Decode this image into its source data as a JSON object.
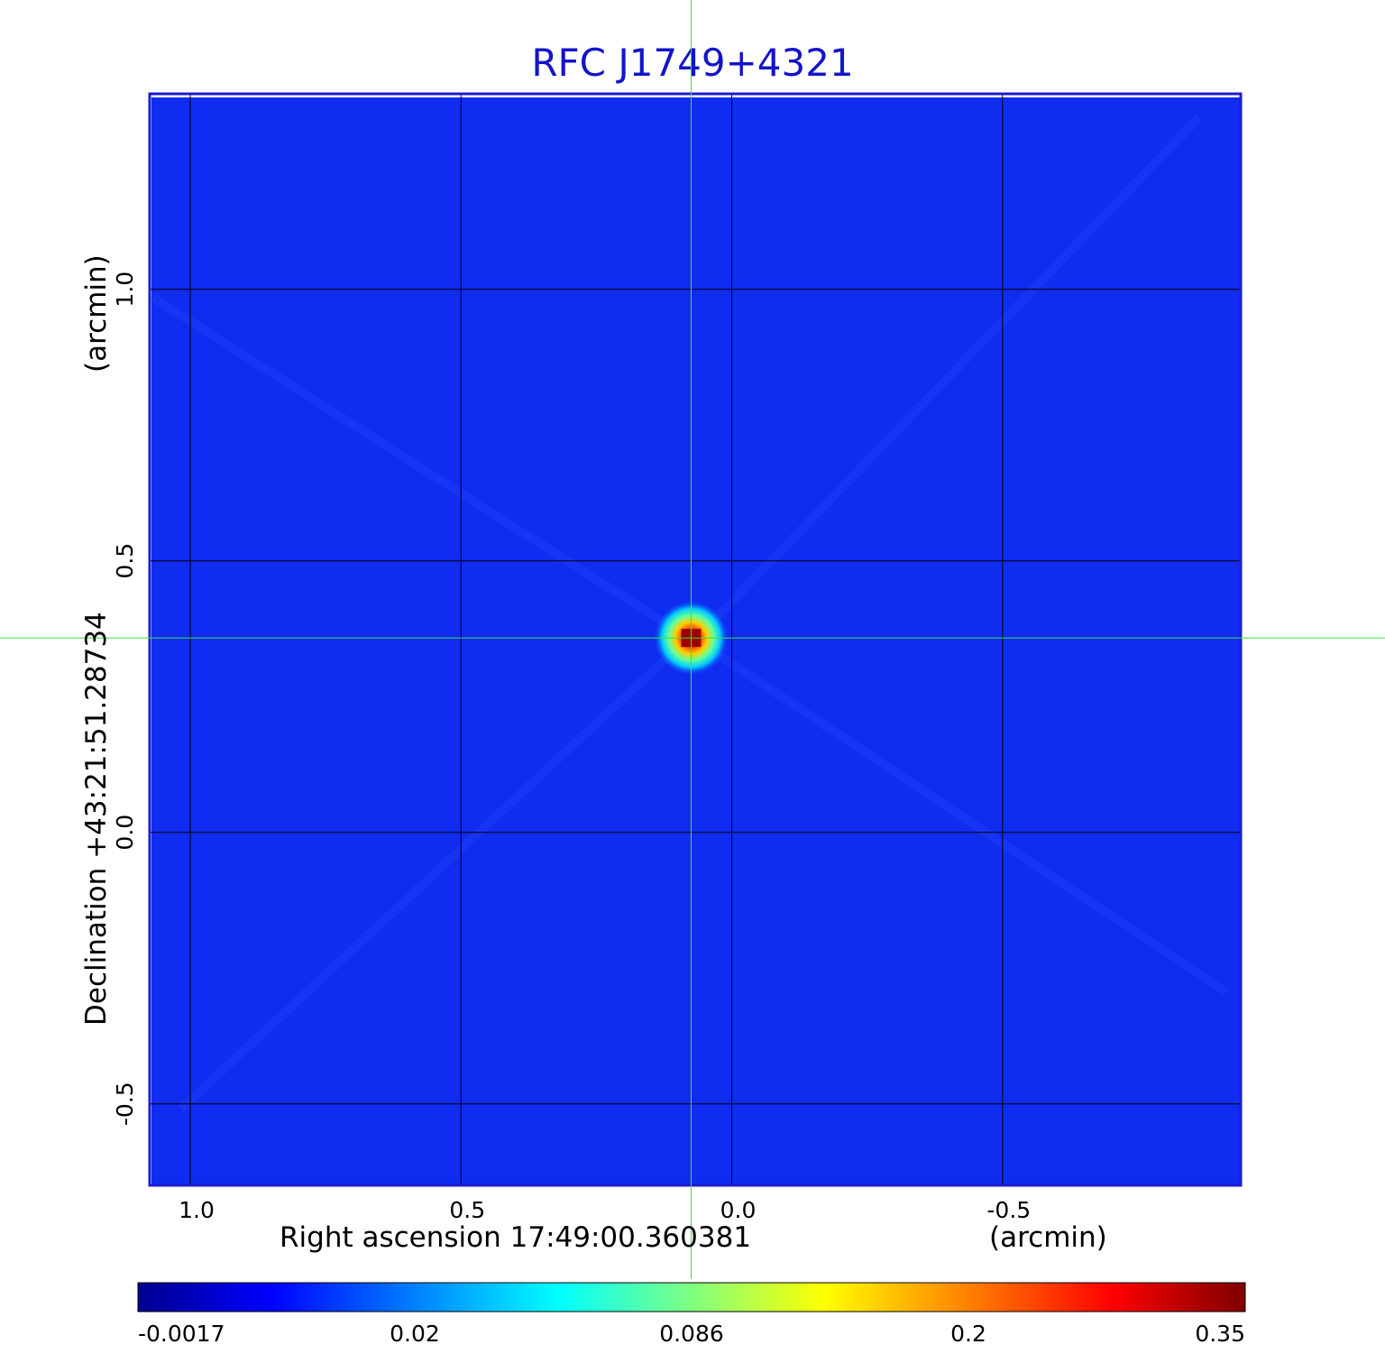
{
  "chart_data": {
    "type": "heatmap",
    "title": "RFC J1749+4321",
    "xlabel": "Right ascension  17:49:00.360381",
    "xunit": "(arcmin)",
    "ylabel": "Declination  +43:21:51.28734",
    "yunit": "(arcmin)",
    "x_ticks": [
      "1.0",
      "0.5",
      "0.0",
      "-0.5"
    ],
    "x_tick_values": [
      1.0,
      0.5,
      0.0,
      -0.5
    ],
    "y_ticks": [
      "1.0",
      "0.5",
      "0.0",
      "-0.5"
    ],
    "y_tick_values": [
      1.0,
      0.5,
      0.0,
      -0.5
    ],
    "xlim": [
      1.075,
      -0.94
    ],
    "ylim": [
      -0.65,
      1.36
    ],
    "grid": true,
    "source": {
      "x": 0.075,
      "y": 0.358,
      "peak": 0.35
    },
    "crosshair": {
      "x": 0.075,
      "y": 0.358
    },
    "colorbar": {
      "ticks": [
        "-0.0017",
        "0.02",
        "0.086",
        "0.2",
        "0.35"
      ],
      "min": -0.0017,
      "max": 0.35,
      "colormap": "jet",
      "placement": "bottom"
    },
    "colors": {
      "title": "#1414c8",
      "background_field": "#0f2cf0",
      "frame": "#1a1ad2",
      "grid": "#000000",
      "crosshair": "#40e040"
    }
  }
}
